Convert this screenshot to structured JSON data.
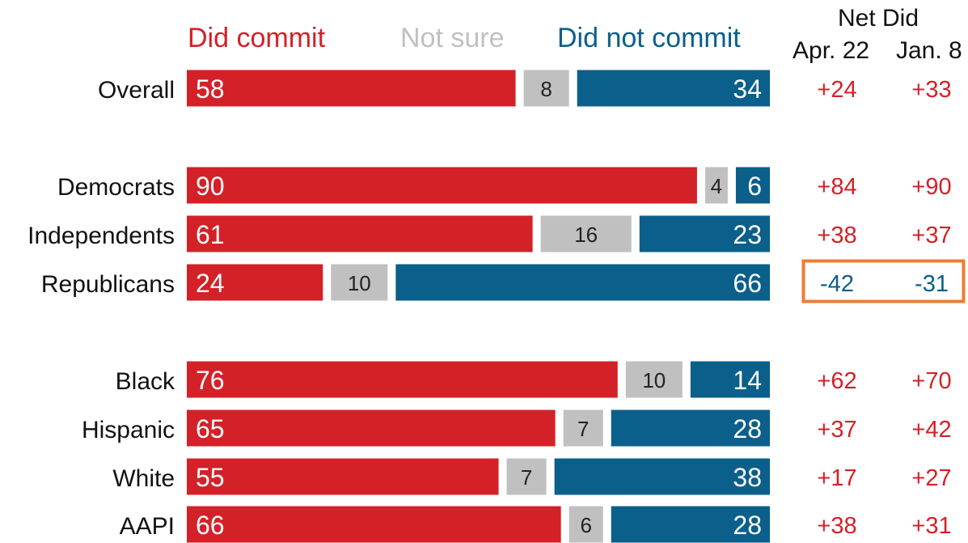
{
  "legend": {
    "did_commit": "Did commit",
    "not_sure": "Not sure",
    "did_not_commit": "Did not commit"
  },
  "net_header": {
    "title": "Net Did",
    "col1": "Apr. 22",
    "col2": "Jan. 8"
  },
  "colors": {
    "did_commit": "#d42128",
    "not_sure": "#c0c0c0",
    "did_not_commit": "#0b5f8b",
    "highlight_box": "#ee7d32"
  },
  "chart_data": {
    "type": "bar",
    "orientation": "horizontal-stacked",
    "categories": [
      "Overall",
      "Democrats",
      "Independents",
      "Republicans",
      "Black",
      "Hispanic",
      "White",
      "AAPI"
    ],
    "series": [
      {
        "name": "Did commit",
        "values": [
          58,
          90,
          61,
          24,
          76,
          65,
          55,
          66
        ]
      },
      {
        "name": "Not sure",
        "values": [
          8,
          4,
          16,
          10,
          10,
          7,
          7,
          6
        ]
      },
      {
        "name": "Did not commit",
        "values": [
          34,
          6,
          23,
          66,
          14,
          28,
          38,
          28
        ]
      }
    ],
    "net_did": {
      "columns": [
        "Apr. 22",
        "Jan. 8"
      ],
      "values": [
        [
          "+24",
          "+33"
        ],
        [
          "+84",
          "+90"
        ],
        [
          "+38",
          "+37"
        ],
        [
          "-42",
          "-31"
        ],
        [
          "+62",
          "+70"
        ],
        [
          "+37",
          "+42"
        ],
        [
          "+17",
          "+27"
        ],
        [
          "+38",
          "+31"
        ]
      ],
      "highlighted_row": "Republicans"
    },
    "xlim": [
      0,
      100
    ]
  }
}
